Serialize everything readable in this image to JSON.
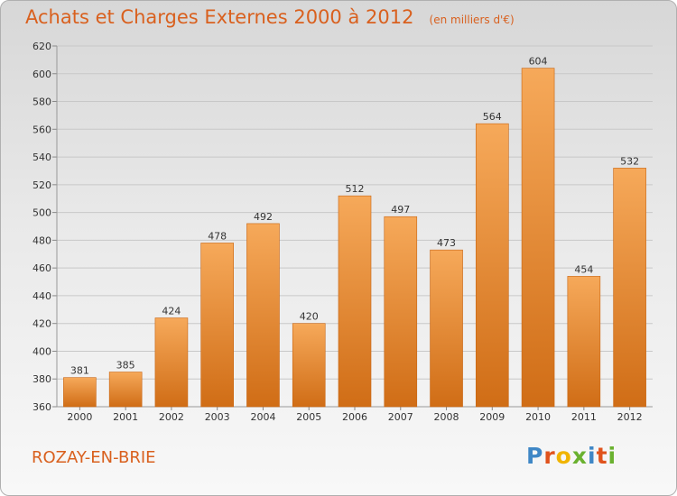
{
  "header": {
    "title": "Achats et Charges Externes 2000 à 2012",
    "subtitle": "(en milliers d'€)"
  },
  "footer": {
    "city": "ROZAY-EN-BRIE",
    "logo": {
      "letters": [
        "P",
        "r",
        "o",
        "x",
        "i",
        "t",
        "i"
      ],
      "colors": [
        "#3f87c6",
        "#e0531d",
        "#f0b400",
        "#6ab12f",
        "#3f87c6",
        "#e0531d",
        "#6ab12f"
      ]
    }
  },
  "colors": {
    "bar_light": "#f6a95a",
    "bar_dark": "#d06d16",
    "grid": "#c8c8c8",
    "text": "#333333"
  },
  "chart_data": {
    "type": "bar",
    "title": "Achats et Charges Externes 2000 à 2012",
    "subtitle": "(en milliers d'€)",
    "xlabel": "",
    "ylabel": "",
    "categories": [
      "2000",
      "2001",
      "2002",
      "2003",
      "2004",
      "2005",
      "2006",
      "2007",
      "2008",
      "2009",
      "2010",
      "2011",
      "2012"
    ],
    "values": [
      381,
      385,
      424,
      478,
      492,
      420,
      512,
      497,
      473,
      564,
      604,
      454,
      532
    ],
    "ylim": [
      360,
      620
    ],
    "yticks": [
      360,
      380,
      400,
      420,
      440,
      460,
      480,
      500,
      520,
      540,
      560,
      580,
      600,
      620
    ],
    "grid": true,
    "data_labels": true
  }
}
